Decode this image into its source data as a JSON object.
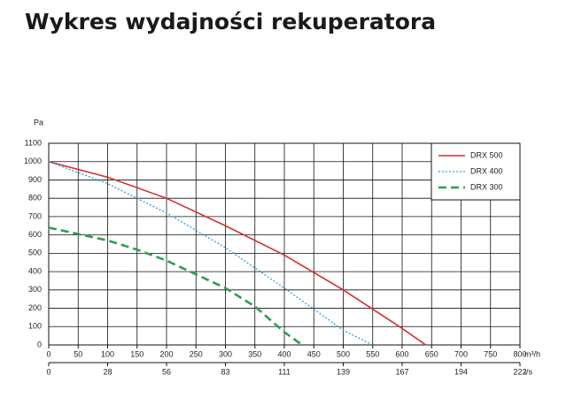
{
  "chart_data": {
    "type": "line",
    "title": "Wykres wydajności rekuperatora",
    "ylabel": "Pa",
    "xlabel": "m³/h",
    "x2label": "l/s",
    "xlim": [
      0,
      800
    ],
    "ylim": [
      0,
      1100
    ],
    "xticks": [
      0,
      50,
      100,
      150,
      200,
      250,
      300,
      350,
      400,
      450,
      500,
      550,
      600,
      650,
      700,
      750,
      800
    ],
    "yticks": [
      0,
      100,
      200,
      300,
      400,
      500,
      600,
      700,
      800,
      900,
      1000,
      1100
    ],
    "x2ticks": [
      {
        "value": 0,
        "label": "0"
      },
      {
        "value": 100,
        "label": "28"
      },
      {
        "value": 200,
        "label": "56"
      },
      {
        "value": 300,
        "label": "83"
      },
      {
        "value": 400,
        "label": "111"
      },
      {
        "value": 500,
        "label": "139"
      },
      {
        "value": 600,
        "label": "167"
      },
      {
        "value": 700,
        "label": "194"
      },
      {
        "value": 800,
        "label": "222"
      }
    ],
    "grid": true,
    "legend": "upper right",
    "series": [
      {
        "name": "DRX 500",
        "color": "#d32f2f",
        "dash": "solid",
        "x": [
          0,
          100,
          200,
          300,
          400,
          500,
          600,
          640
        ],
        "values": [
          1000,
          915,
          800,
          650,
          490,
          300,
          90,
          0
        ]
      },
      {
        "name": "DRX 400",
        "color": "#2a9fd8",
        "dash": "dotted",
        "x": [
          0,
          100,
          150,
          200,
          300,
          400,
          500,
          550
        ],
        "values": [
          1000,
          880,
          800,
          720,
          530,
          310,
          80,
          0
        ]
      },
      {
        "name": "DRX 300",
        "color": "#2e9e4f",
        "dash": "dashed",
        "x": [
          0,
          100,
          150,
          200,
          300,
          350,
          400,
          430
        ],
        "values": [
          640,
          570,
          520,
          460,
          310,
          210,
          70,
          0
        ]
      }
    ]
  }
}
